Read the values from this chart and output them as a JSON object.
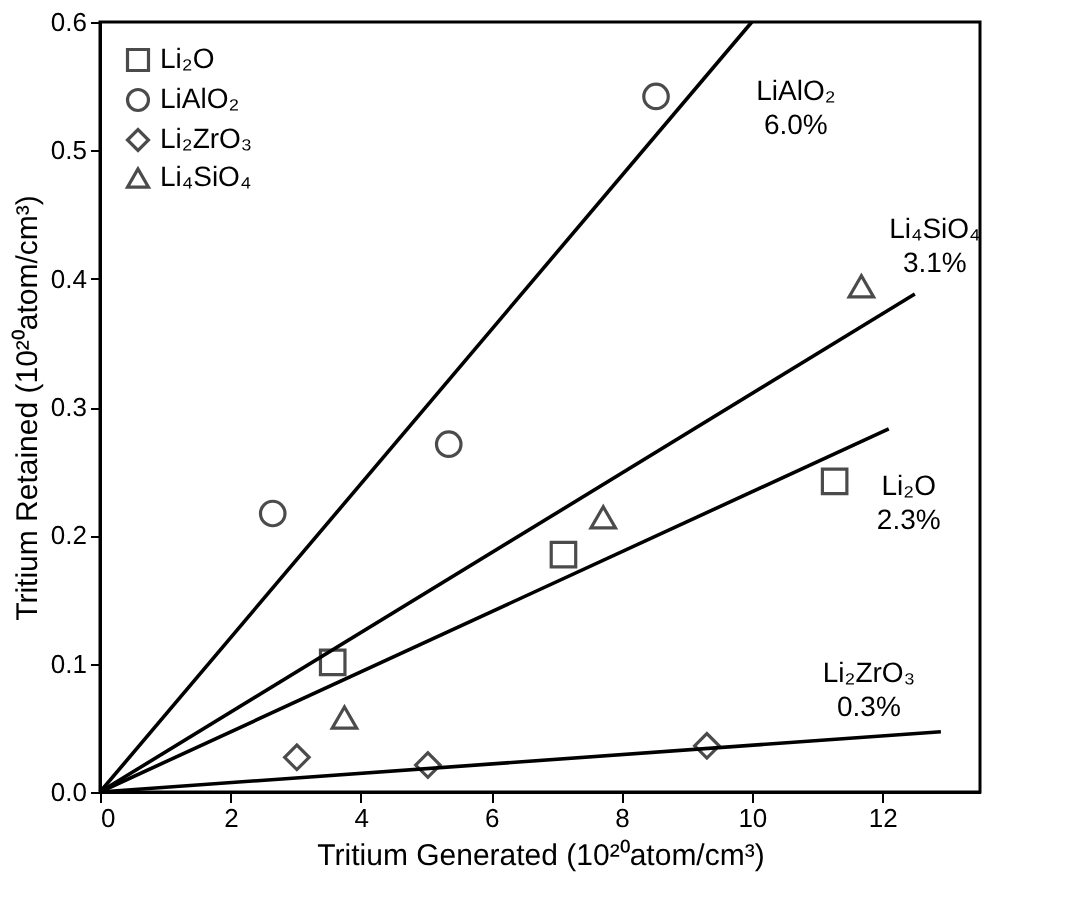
{
  "chart_data": {
    "type": "scatter",
    "xlabel": "Tritium Generated (10²⁰atom/cm³)",
    "ylabel": "Tritium Retained (10²⁰atom/cm³)",
    "series": [
      {
        "name": "Li₂O",
        "marker": "square",
        "color": "#000000",
        "x": [
          3.57,
          7.11,
          11.27
        ],
        "values": [
          0.101,
          0.185,
          0.242
        ]
      },
      {
        "name": "LiAlO₂",
        "marker": "circle",
        "color": "#000000",
        "x": [
          2.65,
          5.35,
          8.53
        ],
        "values": [
          0.217,
          0.271,
          0.542
        ]
      },
      {
        "name": "Li₂ZrO₃",
        "marker": "diamond",
        "color": "#000000",
        "x": [
          3.02,
          5.03,
          9.31
        ],
        "values": [
          0.027,
          0.021,
          0.036
        ]
      },
      {
        "name": "Li₄SiO₄",
        "marker": "triangle",
        "color": "#000000",
        "x": [
          3.75,
          7.72,
          11.68
        ],
        "values": [
          0.058,
          0.214,
          0.394
        ]
      },
      {
        "name": "LiAlO₂\n6.0%",
        "type": "line",
        "color": "#000000",
        "x": [
          0,
          10.0
        ],
        "values": [
          0,
          0.6
        ]
      },
      {
        "name": "Li₄SiO₄\n3.1%",
        "type": "line",
        "color": "#000000",
        "x": [
          0,
          12.5
        ],
        "values": [
          0,
          0.388
        ]
      },
      {
        "name": "Li₂O\n2.3%",
        "type": "line",
        "color": "#000000",
        "x": [
          0,
          12.1
        ],
        "values": [
          0,
          0.283
        ]
      },
      {
        "name": "Li₂ZrO₃\n0.3%",
        "type": "line",
        "color": "#000000",
        "x": [
          0,
          12.9
        ],
        "values": [
          0,
          0.047
        ]
      }
    ],
    "xlim": [
      0,
      13.5
    ],
    "xticks": [
      0,
      2,
      4,
      6,
      8,
      10,
      12
    ],
    "ylim": [
      0,
      0.6
    ],
    "yticks": [
      {
        "value": 0,
        "label": "0.0"
      },
      {
        "value": 0.1,
        "label": "0.1"
      },
      {
        "value": 0.2,
        "label": "0.2"
      },
      {
        "value": 0.3,
        "label": "0.3"
      },
      {
        "value": 0.4,
        "label": "0.4"
      },
      {
        "value": 0.5,
        "label": "0.5"
      },
      {
        "value": 0.6,
        "label": "0.6"
      }
    ],
    "grid": false,
    "legend": "top left"
  }
}
